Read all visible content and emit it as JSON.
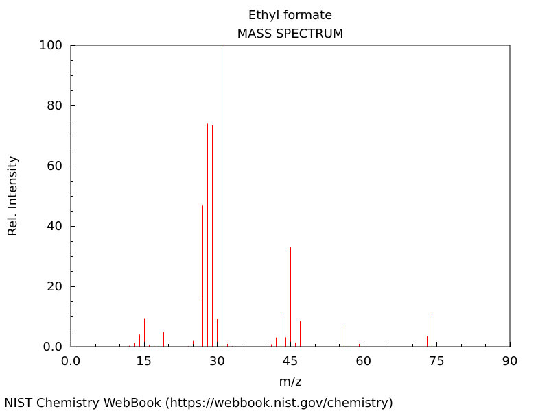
{
  "chart_data": {
    "type": "bar",
    "title": "Ethyl formate",
    "subtitle": "MASS SPECTRUM",
    "xlabel": "m/z",
    "ylabel": "Rel. Intensity",
    "xlim": [
      0,
      90
    ],
    "ylim": [
      0,
      100
    ],
    "x_ticks": [
      "0.0",
      "15",
      "30",
      "45",
      "60",
      "75",
      "90"
    ],
    "y_ticks": [
      "0.0",
      "20",
      "40",
      "60",
      "80",
      "100"
    ],
    "x_tick_values": [
      0,
      15,
      30,
      45,
      60,
      75,
      90
    ],
    "y_tick_values": [
      0,
      20,
      40,
      60,
      80,
      100
    ],
    "grid": false,
    "series": [
      {
        "color": "#ff0000",
        "x": [
          12,
          13,
          14,
          15,
          16,
          17,
          18,
          19,
          24,
          25,
          26,
          27,
          28,
          29,
          30,
          31,
          32,
          33,
          40,
          41,
          42,
          43,
          44,
          45,
          46,
          47,
          55,
          56,
          57,
          59,
          73,
          74,
          75
        ],
        "values": [
          0.3,
          1.2,
          4.0,
          9.4,
          0.5,
          0.4,
          0.3,
          4.8,
          0.2,
          1.9,
          15.2,
          47.0,
          74.0,
          73.5,
          9.2,
          100.0,
          0.9,
          0.2,
          0.3,
          0.8,
          3.0,
          10.2,
          3.1,
          33.0,
          1.4,
          8.5,
          0.3,
          7.4,
          0.4,
          0.9,
          3.5,
          10.2,
          0.5
        ]
      }
    ]
  },
  "credit": "NIST Chemistry WebBook (https://webbook.nist.gov/chemistry)"
}
